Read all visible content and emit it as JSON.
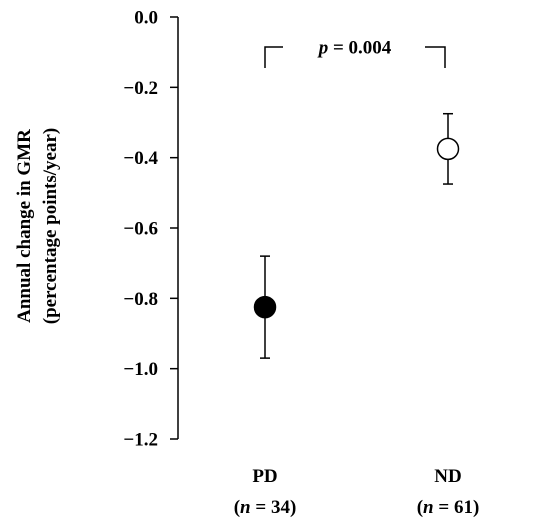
{
  "chart_data": {
    "type": "scatter",
    "title": "",
    "ylabel_line1": "Annual change in GMR",
    "ylabel_line2": "(percentage points/year)",
    "xlabel": "",
    "ylim": [
      -1.2,
      0.0
    ],
    "yticks": [
      0.0,
      -0.2,
      -0.4,
      -0.6,
      -0.8,
      -1.0,
      -1.2
    ],
    "ytick_labels": [
      "0.0",
      "−0.2",
      "−0.4",
      "−0.6",
      "−0.8",
      "−1.0",
      "−1.2"
    ],
    "grid": false,
    "categories": [
      {
        "label": "PD",
        "n_prefix": "(",
        "n_var": "n",
        "n_suffix": " = 34)"
      },
      {
        "label": "ND",
        "n_prefix": "(",
        "n_var": "n",
        "n_suffix": " = 61)"
      }
    ],
    "points": [
      {
        "category": "PD",
        "y": -0.825,
        "err_low": -0.97,
        "err_high": -0.68,
        "marker": "filled",
        "color": "#000000"
      },
      {
        "category": "ND",
        "y": -0.375,
        "err_low": -0.475,
        "err_high": -0.275,
        "marker": "open",
        "color": "#000000"
      }
    ],
    "annotation": {
      "p_symbol": "p",
      "p_text": " = 0.004"
    }
  }
}
